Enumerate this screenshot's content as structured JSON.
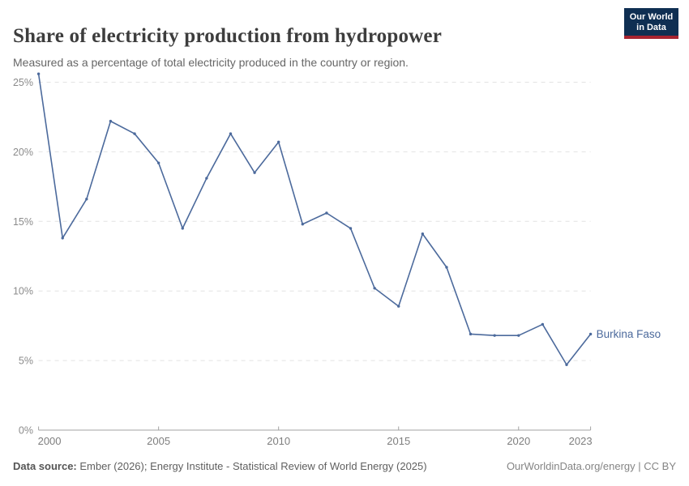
{
  "header": {
    "title": "Share of electricity production from hydropower",
    "subtitle": "Measured as a percentage of total electricity produced in the country or region."
  },
  "logo": {
    "line1": "Our World",
    "line2": "in Data",
    "bg_color": "#0f2f52",
    "bar_color": "#a62430"
  },
  "chart_data": {
    "type": "line",
    "title": "Share of electricity production from hydropower",
    "subtitle": "Measured as a percentage of total electricity produced in the country or region.",
    "x": [
      2000,
      2001,
      2002,
      2003,
      2004,
      2005,
      2006,
      2007,
      2008,
      2009,
      2010,
      2011,
      2012,
      2013,
      2014,
      2015,
      2016,
      2017,
      2018,
      2019,
      2020,
      2021,
      2022,
      2023
    ],
    "series": [
      {
        "name": "Burkina Faso",
        "values": [
          25.6,
          13.8,
          16.6,
          22.2,
          21.3,
          19.2,
          14.5,
          18.1,
          21.3,
          18.5,
          20.7,
          14.8,
          15.6,
          14.5,
          10.2,
          8.9,
          14.1,
          11.7,
          6.9,
          6.8,
          6.8,
          7.6,
          4.7,
          6.9
        ]
      }
    ],
    "xlabel": "",
    "ylabel": "",
    "ylim": [
      0,
      26
    ],
    "yticks": [
      0,
      5,
      10,
      15,
      20,
      25
    ],
    "ytick_suffix": "%",
    "xticks": [
      2000,
      2005,
      2010,
      2015,
      2020,
      2023
    ],
    "grid": "horizontal-dashed",
    "legend": "entity-label-at-line-end",
    "line_color": "#4C6A9C",
    "label_color": "#4C6A9C"
  },
  "footer": {
    "datasource_label": "Data source:",
    "datasource_text": "Ember (2026); Energy Institute - Statistical Review of World Energy (2025)",
    "right_text": "OurWorldinData.org/energy | CC BY"
  }
}
